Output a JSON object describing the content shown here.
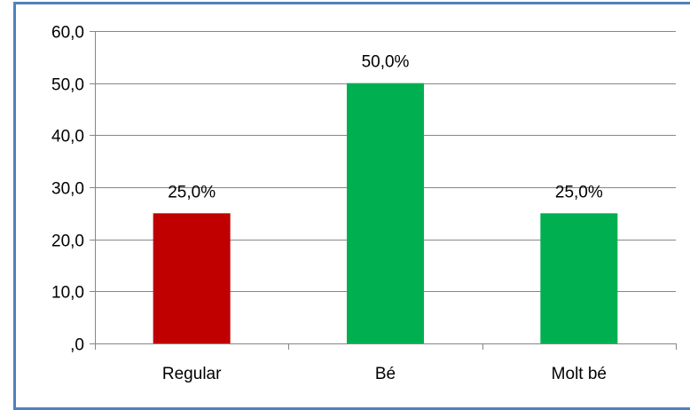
{
  "chart_data": {
    "type": "bar",
    "categories": [
      "Regular",
      "Bé",
      "Molt bé"
    ],
    "values": [
      25.0,
      50.0,
      25.0
    ],
    "data_labels": [
      "25,0%",
      "50,0%",
      "25,0%"
    ],
    "bar_colors": [
      "#c00000",
      "#00b050",
      "#00b050"
    ],
    "title": "",
    "xlabel": "",
    "ylabel": "",
    "ylim": [
      0,
      60
    ],
    "yticks": [
      0,
      10,
      20,
      30,
      40,
      50,
      60
    ],
    "ytick_labels": [
      ",0",
      "10,0",
      "20,0",
      "30,0",
      "40,0",
      "50,0",
      "60,0"
    ],
    "grid": true,
    "legend": "none"
  },
  "colors": {
    "frame_border": "#4f81bd",
    "gridline": "#868686",
    "axis": "#868686"
  }
}
